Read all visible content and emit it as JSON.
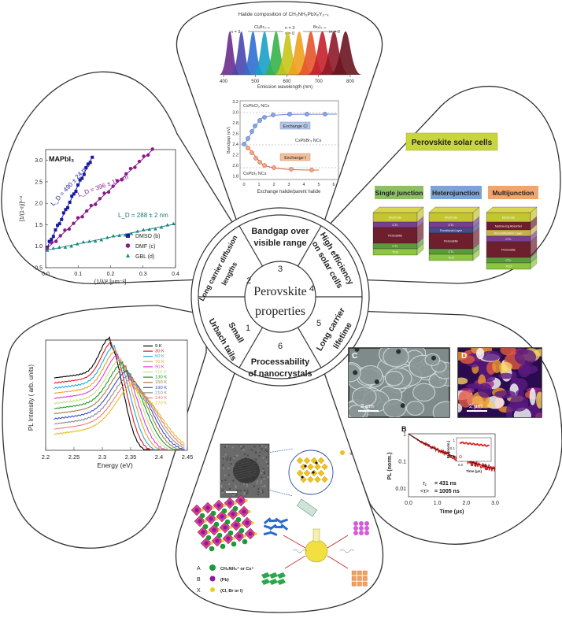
{
  "center": {
    "title_line1": "Perovskite",
    "title_line2": "properties",
    "segments": [
      {
        "num": "1",
        "line1": "Small",
        "line2": "Urbach tails"
      },
      {
        "num": "2",
        "line1": "Long carrier diffusion",
        "line2": "lengths"
      },
      {
        "num": "3",
        "line1": "Bandgap over",
        "line2": "visible range"
      },
      {
        "num": "4",
        "line1": "High efficiency",
        "line2": "on solar cells"
      },
      {
        "num": "5",
        "line1": "Long carrier",
        "line2": "lifetime"
      },
      {
        "num": "6",
        "line1": "Processability",
        "line2": "of nanocrystals"
      }
    ]
  },
  "panel_bandgap": {
    "caption": "Halide composition of CH₃NH₃PbXₓY₃₋ₓ",
    "arrow_left": "ClₓBr₃₋ₓ",
    "arrow_right": "BrₓI₃₋ₓ",
    "n3": "n = 3",
    "n_mid": "n = 3",
    "x_mid": "x = 0",
    "m0": "m = 0",
    "xlabel": "Emission wavelength (nm)",
    "ticks": [
      "400",
      "500",
      "600",
      "700",
      "800"
    ],
    "colors": [
      "#6a2d8f",
      "#4a46b0",
      "#2f6fd0",
      "#1aa0c8",
      "#37b24a",
      "#c8c51a",
      "#f0a020",
      "#e5552a",
      "#c5202c",
      "#8f1a28",
      "#6a1420"
    ]
  },
  "panel_exchange": {
    "ylabel": "Bandgap (eV)",
    "xlabel": "Exchange halide/parent halide",
    "lbl_top": "CsPbCl₃ NCs",
    "lbl_mid": "CsPbBr₃ NCs",
    "lbl_bot": "CsPbI₃ NCs",
    "box_cl": "Exchange Cl",
    "box_i": "Exchange I",
    "y_ticks": [
      "3.2",
      "3.0",
      "2.8",
      "2.6",
      "2.4",
      "2.2",
      "2.0",
      "1.8"
    ],
    "x_ticks": [
      "0",
      "1",
      "2",
      "3",
      "4",
      "5",
      "6"
    ]
  },
  "panel_solar": {
    "title": "Perovskite solar cells",
    "types": [
      "Single junction",
      "Heterojunction",
      "Multijunction"
    ],
    "type_colors": [
      "#8dc063",
      "#7ba3d6",
      "#f2a56b"
    ],
    "layers_single": [
      "Electrode",
      "CTL",
      "Perovskite",
      "CTL",
      "TCO"
    ],
    "layers_hetero": [
      "Electrode",
      "CTL",
      "Functional Layer",
      "Perovskite",
      "CTL",
      "TCO"
    ],
    "layers_multi": [
      "Electrode",
      "Narrow Eg Absorber",
      "Recombination Layer",
      "CTL",
      "Perovskite",
      "CTL",
      "TCO"
    ]
  },
  "panel_diffusion": {
    "label": "MAPbI₃",
    "ylabel": "[1/(1-η)]¹ᐟ²",
    "xlabel": "(1/λ)² [μm⁻²]",
    "ld1": "L_D = 490 ± 24 nm",
    "ld2": "L_D = 396 ± 11 nm",
    "ld3": "L_D = 288 ± 2 nm",
    "legend": [
      "DMSO (b)",
      "DMF (c)",
      "GBL (d)"
    ],
    "y_ticks": [
      "3.0",
      "2.5",
      "2.0",
      "1.5",
      "1.0",
      "0.5"
    ],
    "x_ticks": [
      "0.0",
      "0.1",
      "0.2",
      "0.3",
      "0.4"
    ]
  },
  "panel_pl": {
    "ylabel": "PL Intensity ( arb. units)",
    "xlabel": "Energy (eV)",
    "x_ticks": [
      "2.2",
      "2.25",
      "2.3",
      "2.35",
      "2.4",
      "2.45"
    ],
    "legend": [
      "9 K",
      "30 K",
      "50 K",
      "70 K",
      "90 K",
      "110 K",
      "130 K",
      "150 K",
      "190 K",
      "210 K",
      "240 K",
      "270 K"
    ],
    "legend_colors": [
      "#000000",
      "#e21b1b",
      "#1fa8e0",
      "#f0a020",
      "#d83ed8",
      "#c8e080",
      "#1a9a2a",
      "#a08040",
      "#3a4ad0",
      "#8a8a8a",
      "#f07a7a",
      "#e0c020"
    ]
  },
  "panel_lifetime": {
    "label_c": "C",
    "label_d": "D",
    "label_b": "B",
    "scale": "2 μm",
    "ylabel": "PL (norm.)",
    "xlabel": "Time (μs)",
    "inset_ylabel": "PL (norm.)",
    "inset_xlabel": "Time (μs)",
    "tau": "τ₁",
    "tau_val": "= 431 ns",
    "avg": "<τ>",
    "avg_val": "= 1005 ns",
    "y_ticks": [
      "1",
      "0.1",
      "0.01"
    ],
    "x_ticks": [
      "0.0",
      "1.0",
      "2.0",
      "3.0"
    ],
    "inset_y": [
      "1",
      "0.1",
      "0.01"
    ],
    "inset_x": [
      "0.0",
      "0.2",
      "0.4"
    ]
  },
  "panel_nanocrystal": {
    "legend_a": "A",
    "legend_a_text": "CH₃NH₃⁺ or Cs⁺",
    "legend_b": "B",
    "legend_b_text": "(Pb)",
    "legend_x": "X",
    "legend_x_text": "(Cl, Br or I)"
  }
}
